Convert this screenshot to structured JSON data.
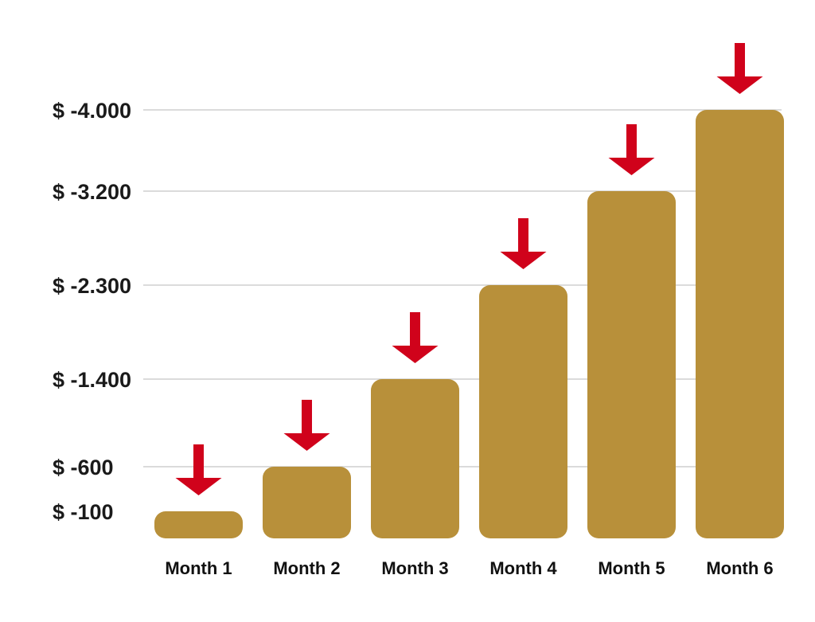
{
  "chart_data": {
    "type": "bar",
    "categories": [
      "Month 1",
      "Month 2",
      "Month 3",
      "Month 4",
      "Month 5",
      "Month 6"
    ],
    "values": [
      -100,
      -600,
      -1400,
      -2300,
      -3200,
      -4000
    ],
    "y_ticks": [
      -100,
      -600,
      -1400,
      -2300,
      -3200,
      -4000
    ],
    "y_tick_labels": [
      "$ -100",
      "$ -600",
      "$ -1.400",
      "$ -2.300",
      "$ -3.200",
      "$ -4.000"
    ],
    "ylim": [
      0,
      -4000
    ],
    "grid": true,
    "arrow_direction": "down"
  },
  "colors": {
    "bar": "#b8903a",
    "arrow": "#d0021b",
    "grid": "#cfcfcf",
    "text": "#1a1a1a"
  }
}
